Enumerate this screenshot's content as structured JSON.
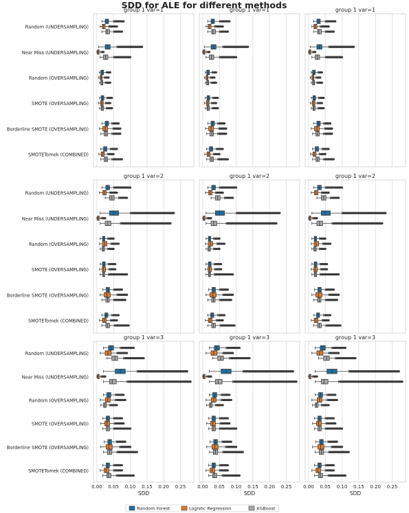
{
  "title": "SDD for ALE for different methods",
  "methods": [
    "Random (UNDERSAMPLING)",
    "Near Miss (UNDERSAMPLING)",
    "Random (OVERSAMPLING)",
    "SMOTE (OVERSAMPLING)",
    "Borderline SMOTE (OVERSAMPLING)",
    "SMOTETomek (COMBINED)"
  ],
  "legend": [
    {
      "label": "Random Forest",
      "color": "#1f6f9f"
    },
    {
      "label": "Logistic Regression",
      "color": "#e07b28"
    },
    {
      "label": "XGBoost",
      "color": "#a9a9a9"
    }
  ],
  "xlabel": "SDD",
  "xticks": [
    "0.00",
    "0.05",
    "0.10",
    "0.15",
    "0.20",
    "0.25"
  ],
  "chart_data": {
    "type": "boxplot",
    "title": "SDD for ALE for different methods",
    "xlabel": "SDD",
    "xlim": [
      -0.01,
      0.29
    ],
    "grid": true,
    "legend_position": "bottom",
    "series_names": [
      "Random Forest",
      "Logistic Regression",
      "XGBoost"
    ],
    "rows": [
      {
        "panel_title": "group 1 var=1",
        "methods": [
          {
            "RF": [
              0.015,
              0.025,
              0.03,
              0.035,
              0.05,
              0.08
            ],
            "LR": [
              0.01,
              0.016,
              0.02,
              0.025,
              0.035,
              0.06
            ],
            "XGB": [
              0.015,
              0.027,
              0.031,
              0.038,
              0.05,
              0.075
            ]
          },
          {
            "RF": [
              0.005,
              0.025,
              0.032,
              0.04,
              0.06,
              0.135
            ],
            "LR": [
              0.0,
              0.002,
              0.004,
              0.007,
              0.012,
              0.02
            ],
            "XGB": [
              0.01,
              0.02,
              0.026,
              0.033,
              0.05,
              0.1
            ]
          },
          {
            "RF": [
              0.008,
              0.012,
              0.016,
              0.02,
              0.028,
              0.04
            ],
            "LR": [
              0.005,
              0.01,
              0.013,
              0.016,
              0.022,
              0.035
            ],
            "XGB": [
              0.008,
              0.012,
              0.015,
              0.018,
              0.025,
              0.04
            ]
          },
          {
            "RF": [
              0.008,
              0.013,
              0.017,
              0.021,
              0.03,
              0.045
            ],
            "LR": [
              0.005,
              0.011,
              0.015,
              0.019,
              0.026,
              0.04
            ],
            "XGB": [
              0.008,
              0.013,
              0.016,
              0.02,
              0.028,
              0.045
            ]
          },
          {
            "RF": [
              0.015,
              0.025,
              0.03,
              0.035,
              0.045,
              0.065
            ],
            "LR": [
              0.008,
              0.018,
              0.025,
              0.032,
              0.048,
              0.07
            ],
            "XGB": [
              0.012,
              0.022,
              0.027,
              0.032,
              0.045,
              0.07
            ]
          },
          {
            "RF": [
              0.012,
              0.02,
              0.025,
              0.03,
              0.04,
              0.06
            ],
            "LR": [
              0.006,
              0.013,
              0.017,
              0.022,
              0.032,
              0.05
            ],
            "XGB": [
              0.012,
              0.022,
              0.027,
              0.032,
              0.045,
              0.075
            ]
          }
        ]
      },
      {
        "panel_title": "group 1 var=2",
        "methods": [
          {
            "RF": [
              0.015,
              0.027,
              0.032,
              0.038,
              0.05,
              0.1
            ],
            "LR": [
              0.008,
              0.018,
              0.022,
              0.028,
              0.038,
              0.06
            ],
            "XGB": [
              0.025,
              0.038,
              0.045,
              0.052,
              0.065,
              0.09
            ]
          },
          {
            "RF": [
              0.01,
              0.038,
              0.05,
              0.065,
              0.1,
              0.23
            ],
            "LR": [
              0.0,
              0.002,
              0.004,
              0.007,
              0.012,
              0.025
            ],
            "XGB": [
              0.01,
              0.025,
              0.033,
              0.042,
              0.07,
              0.22
            ]
          },
          {
            "RF": [
              0.01,
              0.017,
              0.02,
              0.024,
              0.032,
              0.05
            ],
            "LR": [
              0.008,
              0.017,
              0.023,
              0.03,
              0.042,
              0.065
            ],
            "XGB": [
              0.01,
              0.016,
              0.019,
              0.023,
              0.032,
              0.05
            ]
          },
          {
            "RF": [
              0.01,
              0.017,
              0.021,
              0.025,
              0.034,
              0.055
            ],
            "LR": [
              0.008,
              0.016,
              0.02,
              0.026,
              0.036,
              0.055
            ],
            "XGB": [
              0.01,
              0.017,
              0.02,
              0.024,
              0.034,
              0.09
            ]
          },
          {
            "RF": [
              0.018,
              0.028,
              0.033,
              0.038,
              0.05,
              0.075
            ],
            "LR": [
              0.01,
              0.022,
              0.03,
              0.04,
              0.06,
              0.09
            ],
            "XGB": [
              0.015,
              0.027,
              0.032,
              0.037,
              0.05,
              0.085
            ]
          },
          {
            "RF": [
              0.015,
              0.024,
              0.028,
              0.033,
              0.045,
              0.065
            ],
            "LR": [
              0.008,
              0.017,
              0.022,
              0.028,
              0.04,
              0.06
            ],
            "XGB": [
              0.015,
              0.027,
              0.032,
              0.038,
              0.052,
              0.095
            ]
          }
        ]
      },
      {
        "panel_title": "group 1 var=3",
        "methods": [
          {
            "RF": [
              0.02,
              0.035,
              0.042,
              0.05,
              0.07,
              0.11
            ],
            "LR": [
              0.01,
              0.025,
              0.033,
              0.043,
              0.06,
              0.09
            ],
            "XGB": [
              0.03,
              0.045,
              0.054,
              0.062,
              0.08,
              0.14
            ]
          },
          {
            "RF": [
              0.02,
              0.055,
              0.07,
              0.085,
              0.12,
              0.27
            ],
            "LR": [
              0.0,
              0.002,
              0.004,
              0.007,
              0.012,
              0.025
            ],
            "XGB": [
              0.02,
              0.038,
              0.046,
              0.058,
              0.09,
              0.28
            ]
          },
          {
            "RF": [
              0.02,
              0.03,
              0.036,
              0.042,
              0.055,
              0.08
            ],
            "LR": [
              0.01,
              0.026,
              0.033,
              0.04,
              0.055,
              0.085
            ],
            "XGB": [
              0.012,
              0.02,
              0.024,
              0.028,
              0.038,
              0.06
            ]
          },
          {
            "RF": [
              0.018,
              0.028,
              0.033,
              0.038,
              0.05,
              0.075
            ],
            "LR": [
              0.012,
              0.024,
              0.03,
              0.038,
              0.052,
              0.08
            ],
            "XGB": [
              0.018,
              0.028,
              0.033,
              0.038,
              0.05,
              0.1
            ]
          },
          {
            "RF": [
              0.022,
              0.033,
              0.038,
              0.044,
              0.058,
              0.085
            ],
            "LR": [
              0.012,
              0.028,
              0.036,
              0.046,
              0.068,
              0.1
            ],
            "XGB": [
              0.02,
              0.032,
              0.038,
              0.045,
              0.06,
              0.12
            ]
          },
          {
            "RF": [
              0.018,
              0.028,
              0.033,
              0.038,
              0.05,
              0.075
            ],
            "LR": [
              0.01,
              0.022,
              0.028,
              0.036,
              0.05,
              0.075
            ],
            "XGB": [
              0.018,
              0.03,
              0.035,
              0.042,
              0.058,
              0.11
            ]
          }
        ]
      }
    ]
  }
}
